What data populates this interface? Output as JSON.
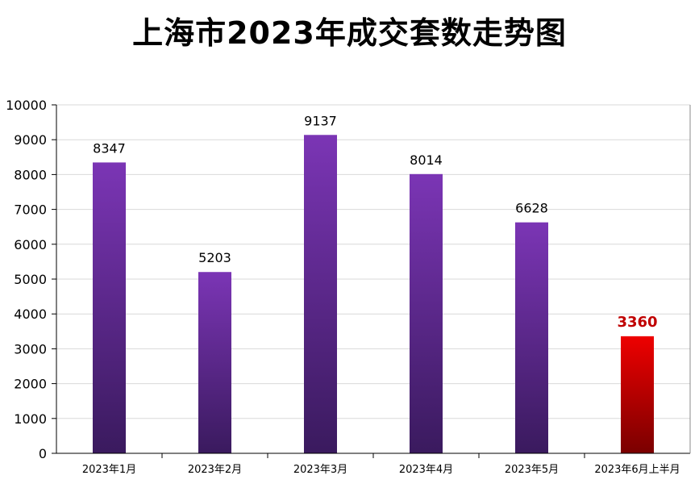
{
  "chart_data": {
    "type": "bar",
    "title": "上海市2023年成交套数走势图",
    "categories": [
      "2023年1月",
      "2023年2月",
      "2023年3月",
      "2023年4月",
      "2023年5月",
      "2023年6月上半月"
    ],
    "values": [
      8347,
      5203,
      9137,
      8014,
      6628,
      3360
    ],
    "data_labels": [
      "8347",
      "5203",
      "9137",
      "8014",
      "6628",
      "3360"
    ],
    "yticks": [
      "0",
      "1000",
      "2000",
      "3000",
      "4000",
      "5000",
      "6000",
      "7000",
      "8000",
      "9000",
      "10000"
    ],
    "ylim": [
      0,
      10000
    ],
    "highlight_index": 5,
    "grid": true,
    "legend": "none",
    "colors": {
      "bar_top": "#7b35b5",
      "bar_bottom": "#3a1a5e",
      "highlight_top": "#ee0000",
      "highlight_bottom": "#7a0000",
      "highlight_label": "#c00000",
      "grid": "#d9d9d9"
    }
  }
}
